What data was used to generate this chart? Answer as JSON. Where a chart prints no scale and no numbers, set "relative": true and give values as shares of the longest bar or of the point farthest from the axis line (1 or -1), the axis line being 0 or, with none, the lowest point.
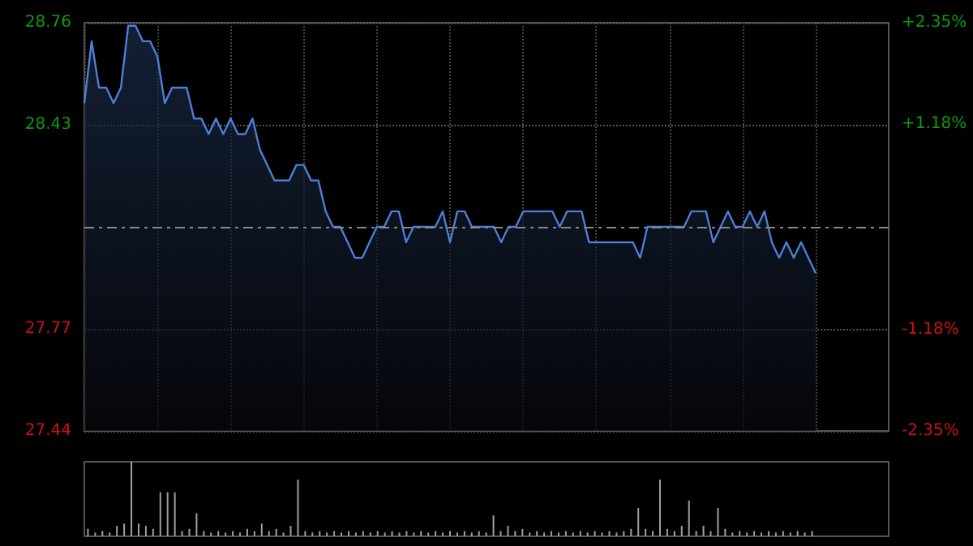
{
  "chart_data": [
    {
      "type": "area",
      "categories": [
        null,
        null,
        null,
        null,
        null,
        null,
        null,
        null,
        null,
        null,
        null,
        null,
        null,
        null,
        null,
        null,
        null,
        null,
        null,
        null,
        null,
        null,
        null,
        null,
        null,
        null,
        null,
        null,
        null,
        null,
        null,
        null,
        null,
        null,
        null,
        null,
        null,
        null,
        null,
        null,
        null,
        null,
        null,
        null,
        null,
        null,
        null,
        null,
        null,
        null,
        null,
        null,
        null,
        null,
        null,
        null,
        null,
        null,
        null,
        null,
        null,
        null,
        null,
        null,
        null,
        null,
        null,
        null,
        null,
        null,
        null,
        null,
        null,
        null,
        null,
        null,
        null,
        null,
        null,
        null,
        null,
        null,
        null,
        null,
        null,
        null,
        null,
        null,
        null,
        null,
        null,
        null,
        null,
        null,
        null,
        null,
        null,
        null,
        null,
        null,
        null
      ],
      "series": [
        {
          "color": "#4d7fd6",
          "values": [
            28.5,
            28.7,
            28.55,
            28.55,
            28.5,
            28.55,
            28.75,
            28.75,
            28.7,
            28.7,
            28.65,
            28.5,
            28.55,
            28.55,
            28.55,
            28.45,
            28.45,
            28.4,
            28.45,
            28.4,
            28.45,
            28.4,
            28.4,
            28.45,
            28.35,
            28.3,
            28.25,
            28.25,
            28.25,
            28.3,
            28.3,
            28.25,
            28.25,
            28.15,
            28.1,
            28.1,
            28.05,
            28.0,
            28.0,
            28.05,
            28.1,
            28.1,
            28.15,
            28.15,
            28.05,
            28.1,
            28.1,
            28.1,
            28.1,
            28.15,
            28.05,
            28.15,
            28.15,
            28.1,
            28.1,
            28.1,
            28.1,
            28.05,
            28.1,
            28.1,
            28.15,
            28.15,
            28.15,
            28.15,
            28.15,
            28.1,
            28.15,
            28.15,
            28.15,
            28.05,
            28.05,
            28.05,
            28.05,
            28.05,
            28.05,
            28.05,
            28.0,
            28.1,
            28.1,
            28.1,
            28.1,
            28.1,
            28.1,
            28.15,
            28.15,
            28.15,
            28.05,
            28.1,
            28.15,
            28.1,
            28.1,
            28.15,
            28.1,
            28.15,
            28.05,
            28.0,
            28.05,
            28.0,
            28.05,
            28.0,
            27.95
          ]
        }
      ],
      "ylim": [
        27.44,
        28.76
      ],
      "yticks": [
        27.44,
        27.77,
        28.43,
        28.76
      ],
      "y2lim": [
        -2.35,
        2.35
      ],
      "y2ticks": [
        {
          "value": -2.35,
          "label": "-2.35%"
        },
        {
          "value": -1.18,
          "label": "-1.18%"
        },
        {
          "value": 1.18,
          "label": "+1.18%"
        },
        {
          "value": 2.35,
          "label": "+2.35%"
        }
      ],
      "ref_lines": [
        {
          "axis": "y",
          "value": 28.1,
          "line_style": "dashed"
        }
      ],
      "tick_labels": "y",
      "grid": true
    },
    {
      "type": "bar",
      "relative": true,
      "categories": [
        null,
        null,
        null,
        null,
        null,
        null,
        null,
        null,
        null,
        null,
        null,
        null,
        null,
        null,
        null,
        null,
        null,
        null,
        null,
        null,
        null,
        null,
        null,
        null,
        null,
        null,
        null,
        null,
        null,
        null,
        null,
        null,
        null,
        null,
        null,
        null,
        null,
        null,
        null,
        null,
        null,
        null,
        null,
        null,
        null,
        null,
        null,
        null,
        null,
        null,
        null,
        null,
        null,
        null,
        null,
        null,
        null,
        null,
        null,
        null,
        null,
        null,
        null,
        null,
        null,
        null,
        null,
        null,
        null,
        null,
        null,
        null,
        null,
        null,
        null,
        null,
        null,
        null,
        null,
        null,
        null,
        null,
        null,
        null,
        null,
        null,
        null,
        null,
        null,
        null,
        null,
        null,
        null,
        null,
        null,
        null,
        null,
        null,
        null,
        null,
        null
      ],
      "series": [
        {
          "color": "#a0a0a0",
          "values": [
            0.1,
            0.05,
            0.07,
            0.05,
            0.14,
            0.17,
            1,
            0.17,
            0.14,
            0.1,
            0.59,
            0.59,
            0.59,
            0.07,
            0.1,
            0.31,
            0.07,
            0.05,
            0.07,
            0.05,
            0.07,
            0.05,
            0.1,
            0.07,
            0.17,
            0.07,
            0.1,
            0.05,
            0.14,
            0.76,
            0.07,
            0.05,
            0.07,
            0.05,
            0.07,
            0.05,
            0.07,
            0.05,
            0.07,
            0.05,
            0.07,
            0.05,
            0.07,
            0.05,
            0.07,
            0.05,
            0.07,
            0.05,
            0.07,
            0.05,
            0.07,
            0.05,
            0.07,
            0.05,
            0.07,
            0.05,
            0.28,
            0.07,
            0.14,
            0.07,
            0.1,
            0.05,
            0.07,
            0.05,
            0.07,
            0.05,
            0.07,
            0.05,
            0.07,
            0.05,
            0.07,
            0.05,
            0.07,
            0.05,
            0.07,
            0.1,
            0.38,
            0.1,
            0.07,
            0.76,
            0.1,
            0.07,
            0.14,
            0.48,
            0.07,
            0.14,
            0.07,
            0.38,
            0.1,
            0.05,
            0.07,
            0.05,
            0.07,
            0.05,
            0.07,
            0.05,
            0.07,
            0.05,
            0.07,
            0.05,
            0.07
          ]
        }
      ],
      "tick_labels": false
    }
  ]
}
